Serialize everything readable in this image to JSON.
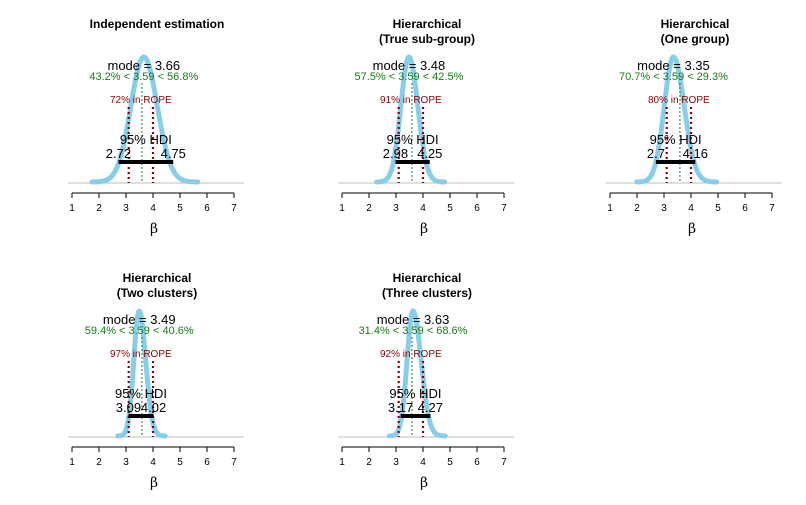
{
  "chart_data": [
    {
      "type": "area",
      "title": [
        "Independent estimation"
      ],
      "xlabel": "β",
      "xticks": [
        1,
        2,
        3,
        4,
        5,
        6,
        7
      ],
      "xlim": [
        1,
        7
      ],
      "mode": 3.66,
      "mode_label": "mode = 3.66",
      "comp_value": 3.59,
      "comp_label": "43.2% < 3.59 < 56.8%",
      "rope": [
        3.1,
        4.0
      ],
      "rope_label": "72% in ROPE",
      "hdi": [
        2.72,
        4.75
      ],
      "hdi_title": "95% HDI",
      "hdi_low_label": "2.72",
      "hdi_high_label": "4.75",
      "sd_left": 0.48,
      "sd_right": 0.5
    },
    {
      "type": "area",
      "title": [
        "Hierarchical",
        "(True sub-group)"
      ],
      "xlabel": "β",
      "xticks": [
        1,
        2,
        3,
        4,
        5,
        6,
        7
      ],
      "xlim": [
        1,
        7
      ],
      "mode": 3.48,
      "mode_label": "mode = 3.48",
      "comp_value": 3.59,
      "comp_label": "57.5% < 3.59 < 42.5%",
      "rope": [
        3.1,
        4.0
      ],
      "rope_label": "91% in ROPE",
      "hdi": [
        2.98,
        4.25
      ],
      "hdi_title": "95% HDI",
      "hdi_low_label": "2.98",
      "hdi_high_label": "4.25",
      "sd_left": 0.3,
      "sd_right": 0.33
    },
    {
      "type": "area",
      "title": [
        "Hierarchical",
        "(One group)"
      ],
      "xlabel": "β",
      "xticks": [
        1,
        2,
        3,
        4,
        5,
        6,
        7
      ],
      "xlim": [
        1,
        7
      ],
      "mode": 3.35,
      "mode_label": "mode = 3.35",
      "comp_value": 3.59,
      "comp_label": "70.7% < 3.59 < 29.3%",
      "rope": [
        3.1,
        4.0
      ],
      "rope_label": "80% in ROPE",
      "hdi": [
        2.7,
        4.16
      ],
      "hdi_title": "95% HDI",
      "hdi_low_label": "2.7",
      "hdi_high_label": "4.16",
      "sd_left": 0.34,
      "sd_right": 0.4
    },
    {
      "type": "area",
      "title": [
        "Hierarchical",
        "(Two clusters)"
      ],
      "xlabel": "β",
      "xticks": [
        1,
        2,
        3,
        4,
        5,
        6,
        7
      ],
      "xlim": [
        1,
        7
      ],
      "mode": 3.49,
      "mode_label": "mode = 3.49",
      "comp_value": 3.59,
      "comp_label": "59.4% < 3.59 < 40.6%",
      "rope": [
        3.1,
        4.0
      ],
      "rope_label": "97% in ROPE",
      "hdi": [
        3.09,
        4.02
      ],
      "hdi_title": "95% HDI",
      "hdi_low_label": "3.09",
      "hdi_high_label": "4.02",
      "sd_left": 0.2,
      "sd_right": 0.24
    },
    {
      "type": "area",
      "title": [
        "Hierarchical",
        "(Three clusters)"
      ],
      "xlabel": "β",
      "xticks": [
        1,
        2,
        3,
        4,
        5,
        6,
        7
      ],
      "xlim": [
        1,
        7
      ],
      "mode": 3.63,
      "mode_label": "mode = 3.63",
      "comp_value": 3.59,
      "comp_label": "31.4% < 3.59 < 68.6%",
      "rope": [
        3.1,
        4.0
      ],
      "rope_label": "92% in ROPE",
      "hdi": [
        3.17,
        4.27
      ],
      "hdi_title": "95% HDI",
      "hdi_low_label": "3.17",
      "hdi_high_label": "4.27",
      "sd_left": 0.22,
      "sd_right": 0.3
    }
  ],
  "colors": {
    "density": "#87ceeb",
    "rope": "#8b0000",
    "comp": "#1a7a1a",
    "hdi": "#000000",
    "axis": "#000000",
    "baseline": "#bfbfbf"
  }
}
